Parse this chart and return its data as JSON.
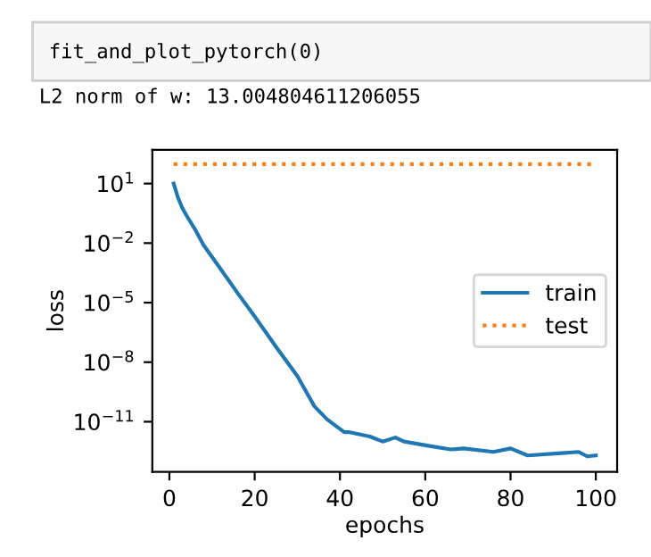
{
  "chart_data": {
    "type": "line",
    "annotations": [
      "fit_and_plot_pytorch(0)",
      "L2 norm of w: 13.004804611206055"
    ],
    "xlabel": "epochs",
    "ylabel": "loss",
    "series": [
      {
        "name": "train",
        "color": "#1f77b4",
        "line_style": "solid",
        "x": [
          1,
          2,
          3,
          4,
          6,
          8,
          12,
          16,
          20,
          25,
          30,
          34,
          37,
          41,
          42,
          47,
          50,
          53,
          55,
          61,
          66,
          69,
          76,
          80,
          84,
          92,
          96,
          98,
          100
        ],
        "values": [
          10,
          2,
          0.6,
          0.25,
          0.05,
          0.008,
          0.0005,
          3e-05,
          2e-06,
          6e-08,
          2e-09,
          6e-11,
          1.3e-11,
          3e-12,
          3e-12,
          1.8e-12,
          1e-12,
          1.6e-12,
          1e-12,
          6e-13,
          4e-13,
          4.5e-13,
          3e-13,
          4.5e-13,
          2e-13,
          2.6e-13,
          3e-13,
          1.8e-13,
          2e-13
        ]
      },
      {
        "name": "test",
        "color": "#ff7f0e",
        "line_style": "dotted",
        "x": [
          1,
          100
        ],
        "values": [
          95,
          95
        ]
      }
    ],
    "log": "y",
    "xlim": [
      -4,
      105
    ],
    "ylim": [
      3e-14,
      500
    ],
    "xticks": [
      0,
      20,
      40,
      60,
      80,
      100
    ],
    "yticks": [
      {
        "value": 10,
        "label": "10$^{1}$"
      },
      {
        "value": 0.01,
        "label": "10$^{−2}$"
      },
      {
        "value": 1e-05,
        "label": "10$^{−5}$"
      },
      {
        "value": 1e-08,
        "label": "10$^{−8}$"
      },
      {
        "value": 1e-11,
        "label": "10$^{−11}$"
      }
    ],
    "legend": "center right",
    "grid": false
  }
}
